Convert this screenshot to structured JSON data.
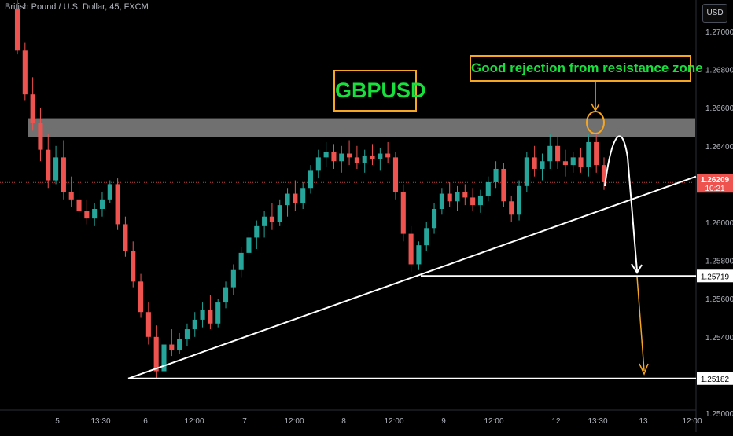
{
  "header": {
    "symbol_line": "British Pound / U.S. Dollar, 45, FXCM"
  },
  "price_axis": {
    "currency_label": "USD",
    "tick_labels": [
      "1.27000",
      "1.26800",
      "1.26600",
      "1.26400",
      "1.26200",
      "1.26000",
      "1.25800",
      "1.25600",
      "1.25400",
      "1.25200",
      "1.25000"
    ]
  },
  "time_axis": {
    "tick_labels": [
      "5",
      "13:30",
      "6",
      "12:00",
      "7",
      "12:00",
      "8",
      "12:00",
      "9",
      "12:00",
      "12",
      "13:30",
      "13",
      "12:00"
    ]
  },
  "annotations": {
    "ticker_box": "GBPUSD",
    "note_box": "Good rejection from resistance zone"
  },
  "price_labels": {
    "current": "1.26209",
    "countdown": "10:21",
    "level_1": "1.25719",
    "level_2": "1.25182"
  },
  "colors": {
    "background": "#000000",
    "bull": "#26a69a",
    "bear": "#ef5350",
    "resistance_zone": "#8c8c8c",
    "annotation_border": "#f5a623",
    "annotation_text": "#17e03c",
    "price_line": "#ef5350"
  },
  "chart_data": {
    "type": "candlestick",
    "y_range": [
      1.249,
      1.272
    ],
    "resistance_zone": [
      1.26445,
      1.26545
    ],
    "current_price": 1.26209,
    "support_level": 1.25719,
    "target_level": 1.25182,
    "trendline": {
      "from": 1.25182,
      "to": 1.2624
    },
    "candles": [
      [
        1.2712,
        1.2722,
        1.2688,
        1.269
      ],
      [
        1.269,
        1.2694,
        1.2664,
        1.2667
      ],
      [
        1.2667,
        1.2676,
        1.2648,
        1.2652
      ],
      [
        1.2652,
        1.266,
        1.2632,
        1.2638
      ],
      [
        1.2638,
        1.2646,
        1.2618,
        1.2622
      ],
      [
        1.2622,
        1.264,
        1.262,
        1.2634
      ],
      [
        1.2634,
        1.2643,
        1.2612,
        1.2616
      ],
      [
        1.2616,
        1.2624,
        1.2608,
        1.2612
      ],
      [
        1.2612,
        1.262,
        1.2602,
        1.2606
      ],
      [
        1.2606,
        1.2612,
        1.2599,
        1.2602
      ],
      [
        1.2602,
        1.261,
        1.2598,
        1.2607
      ],
      [
        1.2607,
        1.2616,
        1.2603,
        1.2612
      ],
      [
        1.2612,
        1.2622,
        1.261,
        1.262
      ],
      [
        1.262,
        1.2623,
        1.2596,
        1.2599
      ],
      [
        1.2599,
        1.2603,
        1.2582,
        1.2585
      ],
      [
        1.2585,
        1.259,
        1.2566,
        1.2569
      ],
      [
        1.2569,
        1.2573,
        1.255,
        1.2553
      ],
      [
        1.2553,
        1.2558,
        1.2536,
        1.254
      ],
      [
        1.254,
        1.2546,
        1.2518,
        1.2522
      ],
      [
        1.2522,
        1.254,
        1.2518,
        1.2536
      ],
      [
        1.2536,
        1.2544,
        1.253,
        1.2533
      ],
      [
        1.2533,
        1.2542,
        1.2531,
        1.2539
      ],
      [
        1.2539,
        1.2547,
        1.2535,
        1.2544
      ],
      [
        1.2544,
        1.2553,
        1.254,
        1.2549
      ],
      [
        1.2549,
        1.2558,
        1.2545,
        1.2554
      ],
      [
        1.2554,
        1.2562,
        1.2544,
        1.2547
      ],
      [
        1.2547,
        1.256,
        1.2545,
        1.2558
      ],
      [
        1.2558,
        1.2569,
        1.2555,
        1.2566
      ],
      [
        1.2566,
        1.2578,
        1.2562,
        1.2575
      ],
      [
        1.2575,
        1.2587,
        1.2571,
        1.2584
      ],
      [
        1.2584,
        1.2595,
        1.258,
        1.2592
      ],
      [
        1.2592,
        1.2601,
        1.2586,
        1.2598
      ],
      [
        1.2598,
        1.2606,
        1.2592,
        1.2603
      ],
      [
        1.2603,
        1.261,
        1.2596,
        1.26
      ],
      [
        1.26,
        1.2612,
        1.2598,
        1.2609
      ],
      [
        1.2609,
        1.2618,
        1.2603,
        1.2615
      ],
      [
        1.2615,
        1.2622,
        1.2606,
        1.261
      ],
      [
        1.261,
        1.2621,
        1.2607,
        1.2618
      ],
      [
        1.2618,
        1.263,
        1.2615,
        1.2627
      ],
      [
        1.2627,
        1.2638,
        1.2623,
        1.2634
      ],
      [
        1.2634,
        1.2642,
        1.2629,
        1.2637
      ],
      [
        1.2637,
        1.2641,
        1.2628,
        1.2632
      ],
      [
        1.2632,
        1.264,
        1.2626,
        1.2636
      ],
      [
        1.2636,
        1.2643,
        1.263,
        1.2634
      ],
      [
        1.2634,
        1.264,
        1.2628,
        1.2631
      ],
      [
        1.2631,
        1.2638,
        1.2626,
        1.2635
      ],
      [
        1.2635,
        1.2641,
        1.263,
        1.2633
      ],
      [
        1.2633,
        1.2639,
        1.2627,
        1.2636
      ],
      [
        1.2636,
        1.2642,
        1.2631,
        1.2634
      ],
      [
        1.2634,
        1.2637,
        1.2612,
        1.2616
      ],
      [
        1.2616,
        1.262,
        1.259,
        1.2594
      ],
      [
        1.2594,
        1.2598,
        1.2574,
        1.2578
      ],
      [
        1.2578,
        1.259,
        1.2575,
        1.2588
      ],
      [
        1.2588,
        1.26,
        1.2585,
        1.2597
      ],
      [
        1.2597,
        1.261,
        1.2594,
        1.2607
      ],
      [
        1.2607,
        1.2618,
        1.2604,
        1.2615
      ],
      [
        1.2615,
        1.2621,
        1.2608,
        1.2611
      ],
      [
        1.2611,
        1.2619,
        1.2606,
        1.2616
      ],
      [
        1.2616,
        1.262,
        1.2609,
        1.2613
      ],
      [
        1.2613,
        1.2618,
        1.2606,
        1.2609
      ],
      [
        1.2609,
        1.2617,
        1.2605,
        1.2614
      ],
      [
        1.2614,
        1.2624,
        1.2611,
        1.2621
      ],
      [
        1.2621,
        1.2632,
        1.2618,
        1.2628
      ],
      [
        1.2628,
        1.2631,
        1.2608,
        1.2611
      ],
      [
        1.2611,
        1.2614,
        1.26,
        1.2604
      ],
      [
        1.2604,
        1.2622,
        1.2601,
        1.2619
      ],
      [
        1.2619,
        1.2637,
        1.2616,
        1.2634
      ],
      [
        1.2634,
        1.264,
        1.2624,
        1.2628
      ],
      [
        1.2628,
        1.2636,
        1.2622,
        1.2632
      ],
      [
        1.2632,
        1.2646,
        1.2628,
        1.264
      ],
      [
        1.264,
        1.2645,
        1.2628,
        1.2632
      ],
      [
        1.2632,
        1.2638,
        1.2624,
        1.263
      ],
      [
        1.263,
        1.2637,
        1.2626,
        1.2634
      ],
      [
        1.2634,
        1.2639,
        1.2626,
        1.2629
      ],
      [
        1.2629,
        1.2646,
        1.2624,
        1.2642
      ],
      [
        1.2642,
        1.2646,
        1.2626,
        1.263
      ],
      [
        1.263,
        1.2634,
        1.2617,
        1.2621
      ]
    ]
  }
}
